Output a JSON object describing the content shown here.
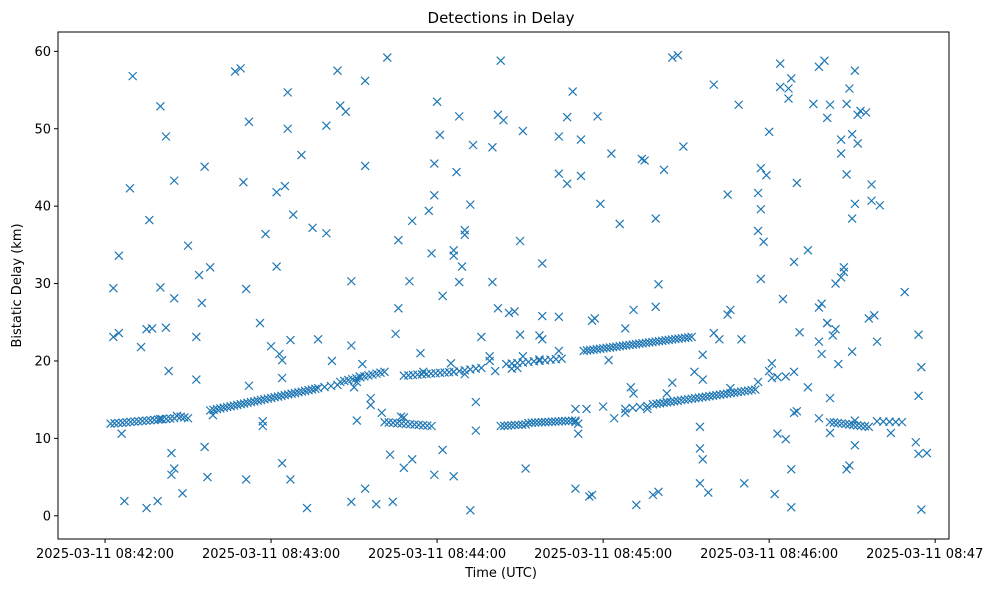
{
  "chart_data": {
    "type": "scatter",
    "title": "Detections in Delay",
    "xlabel": "Time (UTC)",
    "ylabel": "Bistatic Delay (km)",
    "marker": "x",
    "color": "#1f77b4",
    "x_unit": "seconds after 2025-03-11 08:42:00",
    "xlim": [
      -17,
      305
    ],
    "ylim": [
      -3,
      62.5
    ],
    "xticks": [
      {
        "value": 0,
        "label": "2025-03-11 08:42:00"
      },
      {
        "value": 60,
        "label": "2025-03-11 08:43:00"
      },
      {
        "value": 120,
        "label": "2025-03-11 08:44:00"
      },
      {
        "value": 180,
        "label": "2025-03-11 08:45:00"
      },
      {
        "value": 240,
        "label": "2025-03-11 08:46:00"
      },
      {
        "value": 300,
        "label": "2025-03-11 08:47:00"
      }
    ],
    "yticks": [
      {
        "value": 0,
        "label": "0"
      },
      {
        "value": 10,
        "label": "10"
      },
      {
        "value": 20,
        "label": "20"
      },
      {
        "value": 30,
        "label": "30"
      },
      {
        "value": 40,
        "label": "40"
      },
      {
        "value": 50,
        "label": "50"
      },
      {
        "value": 60,
        "label": "60"
      }
    ],
    "tracks": [
      {
        "name": "track-1",
        "x_start": 2,
        "x_end": 25,
        "y_start": 11.9,
        "y_end": 12.6,
        "count": 17
      },
      {
        "name": "track-2",
        "x_start": 26,
        "x_end": 30,
        "y_start": 12.9,
        "y_end": 12.6,
        "count": 4
      },
      {
        "name": "track-3",
        "x_start": 38,
        "x_end": 76,
        "y_start": 13.6,
        "y_end": 16.4,
        "count": 32
      },
      {
        "name": "track-4",
        "x_start": 77,
        "x_end": 84,
        "y_start": 16.5,
        "y_end": 16.9,
        "count": 4
      },
      {
        "name": "track-5",
        "x_start": 85,
        "x_end": 101,
        "y_start": 17.3,
        "y_end": 18.6,
        "count": 12
      },
      {
        "name": "track-6",
        "x_start": 108,
        "x_end": 126,
        "y_start": 18.1,
        "y_end": 18.6,
        "count": 12
      },
      {
        "name": "track-7",
        "x_start": 126,
        "x_end": 136,
        "y_start": 18.6,
        "y_end": 19.1,
        "count": 6
      },
      {
        "name": "track-8",
        "x_start": 101,
        "x_end": 118,
        "y_start": 12.1,
        "y_end": 11.6,
        "count": 12
      },
      {
        "name": "track-9",
        "x_start": 145,
        "x_end": 165,
        "y_start": 19.6,
        "y_end": 20.3,
        "count": 11
      },
      {
        "name": "track-10",
        "x_start": 143,
        "x_end": 152,
        "y_start": 11.6,
        "y_end": 11.8,
        "count": 8
      },
      {
        "name": "track-11",
        "x_start": 153,
        "x_end": 170,
        "y_start": 12.0,
        "y_end": 12.3,
        "count": 15
      },
      {
        "name": "track-12",
        "x_start": 173,
        "x_end": 212,
        "y_start": 21.3,
        "y_end": 23.1,
        "count": 34
      },
      {
        "name": "track-13",
        "x_start": 188,
        "x_end": 196,
        "y_start": 13.8,
        "y_end": 14.2,
        "count": 4
      },
      {
        "name": "track-14",
        "x_start": 198,
        "x_end": 235,
        "y_start": 14.4,
        "y_end": 16.3,
        "count": 30
      },
      {
        "name": "track-15",
        "x_start": 262,
        "x_end": 276,
        "y_start": 12.1,
        "y_end": 11.5,
        "count": 11
      },
      {
        "name": "track-16",
        "x_start": 279,
        "x_end": 288,
        "y_start": 12.2,
        "y_end": 12.1,
        "count": 5
      }
    ],
    "scattered_points": [
      [
        3,
        29.4
      ],
      [
        3,
        23.1
      ],
      [
        5,
        33.6
      ],
      [
        5,
        23.6
      ],
      [
        6,
        10.6
      ],
      [
        7,
        1.9
      ],
      [
        9,
        42.3
      ],
      [
        10,
        56.8
      ],
      [
        15,
        1.0
      ],
      [
        13,
        21.8
      ],
      [
        15,
        24.1
      ],
      [
        16,
        38.2
      ],
      [
        17,
        24.2
      ],
      [
        19,
        1.9
      ],
      [
        20,
        12.5
      ],
      [
        20,
        52.9
      ],
      [
        20,
        29.5
      ],
      [
        22,
        49.0
      ],
      [
        22,
        24.3
      ],
      [
        23,
        18.7
      ],
      [
        24,
        5.3
      ],
      [
        24,
        8.1
      ],
      [
        25,
        6.1
      ],
      [
        25,
        43.3
      ],
      [
        25,
        28.1
      ],
      [
        28,
        2.9
      ],
      [
        30,
        34.9
      ],
      [
        33,
        17.6
      ],
      [
        33,
        23.1
      ],
      [
        34,
        31.1
      ],
      [
        35,
        27.5
      ],
      [
        36,
        45.1
      ],
      [
        36,
        8.9
      ],
      [
        37,
        5.0
      ],
      [
        38,
        32.1
      ],
      [
        39,
        13.0
      ],
      [
        47,
        57.4
      ],
      [
        49,
        57.8
      ],
      [
        50,
        43.1
      ],
      [
        51,
        29.3
      ],
      [
        51,
        4.7
      ],
      [
        52,
        50.9
      ],
      [
        52,
        16.8
      ],
      [
        56,
        24.9
      ],
      [
        57,
        11.6
      ],
      [
        57,
        12.2
      ],
      [
        58,
        36.4
      ],
      [
        60,
        21.9
      ],
      [
        62,
        41.8
      ],
      [
        62,
        32.2
      ],
      [
        63,
        20.9
      ],
      [
        64,
        20.1
      ],
      [
        64,
        6.8
      ],
      [
        64,
        17.8
      ],
      [
        65,
        42.6
      ],
      [
        66,
        54.7
      ],
      [
        66,
        50.0
      ],
      [
        67,
        22.7
      ],
      [
        67,
        4.7
      ],
      [
        68,
        38.9
      ],
      [
        71,
        46.6
      ],
      [
        73,
        1.0
      ],
      [
        75,
        37.2
      ],
      [
        77,
        22.8
      ],
      [
        80,
        36.5
      ],
      [
        80,
        50.4
      ],
      [
        82,
        20.0
      ],
      [
        84,
        57.5
      ],
      [
        85,
        53.0
      ],
      [
        87,
        52.2
      ],
      [
        89,
        30.3
      ],
      [
        89,
        22.0
      ],
      [
        89,
        1.8
      ],
      [
        90,
        16.6
      ],
      [
        91,
        12.3
      ],
      [
        91,
        17.3
      ],
      [
        92,
        18.0
      ],
      [
        93,
        19.6
      ],
      [
        94,
        3.5
      ],
      [
        94,
        56.2
      ],
      [
        94,
        45.2
      ],
      [
        96,
        15.2
      ],
      [
        96,
        14.3
      ],
      [
        98,
        1.5
      ],
      [
        100,
        13.3
      ],
      [
        102,
        59.2
      ],
      [
        103,
        7.9
      ],
      [
        104,
        1.8
      ],
      [
        105,
        23.5
      ],
      [
        106,
        26.8
      ],
      [
        106,
        35.6
      ],
      [
        107,
        12.8
      ],
      [
        108,
        12.7
      ],
      [
        108,
        6.2
      ],
      [
        110,
        30.3
      ],
      [
        111,
        7.3
      ],
      [
        111,
        38.1
      ],
      [
        114,
        21.0
      ],
      [
        115,
        18.6
      ],
      [
        117,
        39.4
      ],
      [
        118,
        33.9
      ],
      [
        119,
        41.4
      ],
      [
        119,
        45.5
      ],
      [
        119,
        5.3
      ],
      [
        120,
        53.5
      ],
      [
        121,
        49.2
      ],
      [
        122,
        28.4
      ],
      [
        122,
        8.5
      ],
      [
        125,
        19.7
      ],
      [
        126,
        33.6
      ],
      [
        126,
        34.3
      ],
      [
        126,
        5.1
      ],
      [
        127,
        44.4
      ],
      [
        128,
        30.2
      ],
      [
        128,
        51.6
      ],
      [
        129,
        32.2
      ],
      [
        130,
        36.9
      ],
      [
        130,
        36.3
      ],
      [
        130,
        18.3
      ],
      [
        132,
        0.7
      ],
      [
        132,
        40.2
      ],
      [
        133,
        47.9
      ],
      [
        134,
        14.7
      ],
      [
        134,
        11.0
      ],
      [
        136,
        23.1
      ],
      [
        139,
        20.6
      ],
      [
        139,
        20.0
      ],
      [
        140,
        30.2
      ],
      [
        140,
        47.6
      ],
      [
        141,
        18.7
      ],
      [
        142,
        26.8
      ],
      [
        142,
        51.8
      ],
      [
        143,
        58.8
      ],
      [
        144,
        51.1
      ],
      [
        146,
        26.2
      ],
      [
        147,
        19.0
      ],
      [
        148,
        26.4
      ],
      [
        149,
        19.1
      ],
      [
        150,
        23.4
      ],
      [
        150,
        35.5
      ],
      [
        151,
        49.7
      ],
      [
        151,
        20.6
      ],
      [
        152,
        6.1
      ],
      [
        157,
        23.3
      ],
      [
        157,
        20.2
      ],
      [
        158,
        32.6
      ],
      [
        158,
        22.8
      ],
      [
        158,
        25.8
      ],
      [
        164,
        44.2
      ],
      [
        164,
        49.0
      ],
      [
        164,
        25.7
      ],
      [
        164,
        21.3
      ],
      [
        167,
        42.9
      ],
      [
        167,
        51.5
      ],
      [
        169,
        54.8
      ],
      [
        170,
        3.5
      ],
      [
        170,
        12.1
      ],
      [
        170,
        13.8
      ],
      [
        171,
        11.9
      ],
      [
        171,
        10.6
      ],
      [
        172,
        43.9
      ],
      [
        172,
        48.6
      ],
      [
        174,
        13.8
      ],
      [
        175,
        2.5
      ],
      [
        176,
        2.7
      ],
      [
        176,
        25.2
      ],
      [
        177,
        25.5
      ],
      [
        178,
        51.6
      ],
      [
        179,
        40.3
      ],
      [
        180,
        14.1
      ],
      [
        182,
        20.1
      ],
      [
        183,
        46.8
      ],
      [
        184,
        12.6
      ],
      [
        186,
        37.7
      ],
      [
        188,
        13.3
      ],
      [
        188,
        24.2
      ],
      [
        190,
        16.6
      ],
      [
        191,
        26.6
      ],
      [
        191,
        15.8
      ],
      [
        192,
        1.4
      ],
      [
        194,
        46.1
      ],
      [
        195,
        45.9
      ],
      [
        196,
        13.8
      ],
      [
        198,
        2.7
      ],
      [
        199,
        38.4
      ],
      [
        199,
        27.0
      ],
      [
        200,
        29.9
      ],
      [
        200,
        3.1
      ],
      [
        202,
        44.7
      ],
      [
        203,
        15.8
      ],
      [
        203,
        14.7
      ],
      [
        205,
        17.2
      ],
      [
        205,
        59.2
      ],
      [
        207,
        59.5
      ],
      [
        209,
        47.7
      ],
      [
        213,
        18.6
      ],
      [
        215,
        11.5
      ],
      [
        215,
        8.7
      ],
      [
        215,
        4.2
      ],
      [
        216,
        20.8
      ],
      [
        216,
        17.6
      ],
      [
        216,
        7.3
      ],
      [
        218,
        3.0
      ],
      [
        220,
        55.7
      ],
      [
        220,
        23.6
      ],
      [
        222,
        22.8
      ],
      [
        225,
        41.5
      ],
      [
        225,
        26.0
      ],
      [
        226,
        26.6
      ],
      [
        226,
        16.5
      ],
      [
        229,
        53.1
      ],
      [
        230,
        22.8
      ],
      [
        231,
        4.2
      ],
      [
        236,
        41.7
      ],
      [
        236,
        36.8
      ],
      [
        236,
        17.3
      ],
      [
        237,
        44.9
      ],
      [
        237,
        39.6
      ],
      [
        237,
        30.6
      ],
      [
        238,
        35.4
      ],
      [
        239,
        44.0
      ],
      [
        240,
        49.6
      ],
      [
        240,
        18.7
      ],
      [
        241,
        19.7
      ],
      [
        241,
        17.8
      ],
      [
        242,
        2.8
      ],
      [
        243,
        17.9
      ],
      [
        243,
        10.6
      ],
      [
        244,
        58.4
      ],
      [
        244,
        55.4
      ],
      [
        245,
        28.0
      ],
      [
        246,
        9.9
      ],
      [
        246,
        18.0
      ],
      [
        247,
        53.9
      ],
      [
        247,
        55.2
      ],
      [
        248,
        56.5
      ],
      [
        248,
        6.0
      ],
      [
        248,
        1.1
      ],
      [
        249,
        32.8
      ],
      [
        249,
        13.3
      ],
      [
        249,
        18.6
      ],
      [
        250,
        43.0
      ],
      [
        250,
        13.5
      ],
      [
        251,
        23.7
      ],
      [
        254,
        34.3
      ],
      [
        254,
        16.6
      ],
      [
        256,
        53.2
      ],
      [
        258,
        58.0
      ],
      [
        258,
        26.9
      ],
      [
        258,
        22.5
      ],
      [
        258,
        12.6
      ],
      [
        259,
        20.9
      ],
      [
        259,
        27.4
      ],
      [
        260,
        58.8
      ],
      [
        261,
        51.4
      ],
      [
        261,
        24.9
      ],
      [
        261,
        24.9
      ],
      [
        262,
        53.1
      ],
      [
        262,
        15.2
      ],
      [
        262,
        10.7
      ],
      [
        263,
        23.3
      ],
      [
        264,
        24.1
      ],
      [
        264,
        30.0
      ],
      [
        265,
        19.6
      ],
      [
        266,
        30.8
      ],
      [
        266,
        46.8
      ],
      [
        266,
        48.6
      ],
      [
        267,
        31.5
      ],
      [
        267,
        32.1
      ],
      [
        268,
        53.2
      ],
      [
        268,
        44.1
      ],
      [
        268,
        6.0
      ],
      [
        269,
        6.5
      ],
      [
        269,
        55.2
      ],
      [
        270,
        49.3
      ],
      [
        270,
        38.4
      ],
      [
        270,
        21.2
      ],
      [
        271,
        9.1
      ],
      [
        271,
        40.3
      ],
      [
        271,
        57.5
      ],
      [
        271,
        12.3
      ],
      [
        272,
        48.1
      ],
      [
        272,
        51.8
      ],
      [
        273,
        52.3
      ],
      [
        275,
        52.1
      ],
      [
        276,
        25.5
      ],
      [
        277,
        42.8
      ],
      [
        277,
        40.7
      ],
      [
        278,
        25.9
      ],
      [
        279,
        22.5
      ],
      [
        280,
        40.1
      ],
      [
        284,
        10.7
      ],
      [
        289,
        28.9
      ],
      [
        293,
        9.5
      ],
      [
        294,
        8.0
      ],
      [
        294,
        23.4
      ],
      [
        294,
        15.5
      ],
      [
        295,
        19.2
      ],
      [
        295,
        0.8
      ],
      [
        297,
        8.1
      ]
    ]
  }
}
